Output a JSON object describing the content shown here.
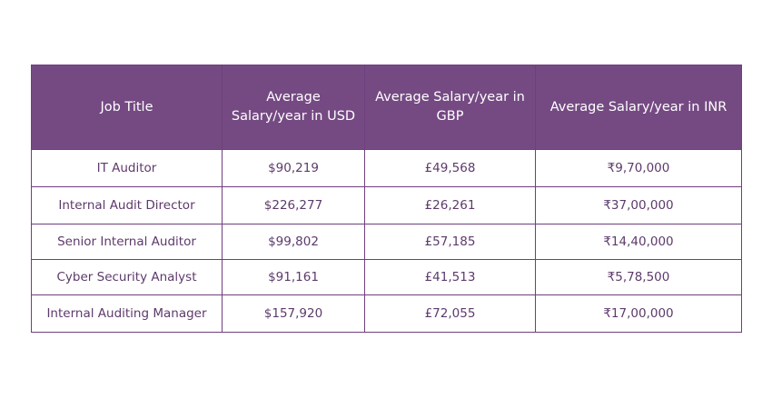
{
  "table": {
    "header": [
      "Job Title",
      "Average Salary/year in USD",
      "Average Salary/year in GBP",
      "Average Salary/year in INR"
    ],
    "rows": [
      [
        "IT Auditor",
        "$90,219",
        "£49,568",
        "₹9,70,000"
      ],
      [
        "Internal Audit Director",
        "$226,277",
        "£26,261",
        "₹37,00,000"
      ],
      [
        "Senior Internal Auditor",
        "$99,802",
        "£57,185",
        "₹14,40,000"
      ],
      [
        "Cyber Security Analyst",
        "$91,161",
        "£41,513",
        "₹5,78,500"
      ],
      [
        "Internal Auditing Manager",
        "$157,920",
        "£72,055",
        "₹17,00,000"
      ]
    ]
  }
}
